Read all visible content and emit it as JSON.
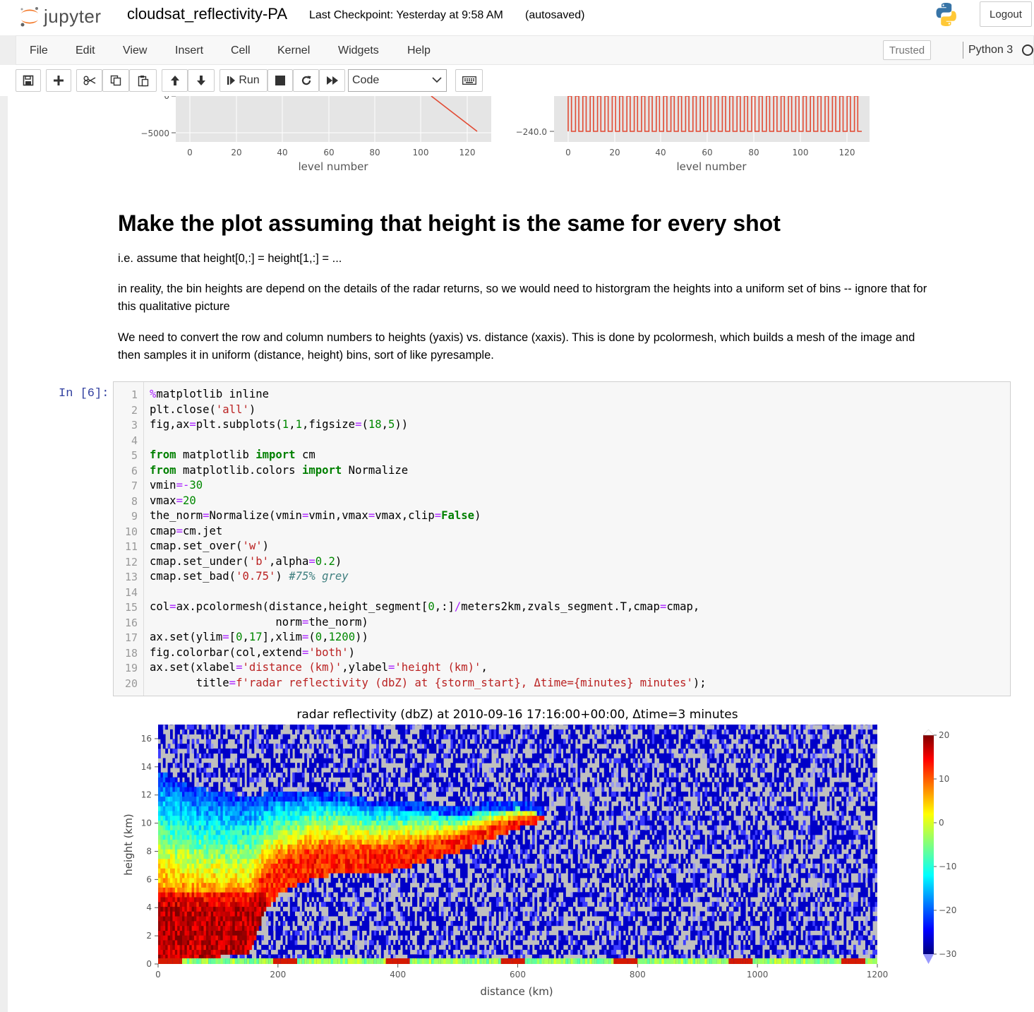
{
  "header": {
    "logo_text": "jupyter",
    "notebook_name": "cloudsat_reflectivity-PA",
    "checkpoint": "Last Checkpoint: Yesterday at 9:58 AM",
    "autosave": "(autosaved)",
    "logout": "Logout"
  },
  "menu": {
    "items": [
      "File",
      "Edit",
      "View",
      "Insert",
      "Cell",
      "Kernel",
      "Widgets",
      "Help"
    ],
    "trusted": "Trusted",
    "kernel": "Python 3"
  },
  "toolbar": {
    "run_label": "Run",
    "cell_type": "Code",
    "icons": [
      "save-icon",
      "plus-icon",
      "cut-icon",
      "copy-icon",
      "paste-icon",
      "arrow-up-icon",
      "arrow-down-icon",
      "run-icon",
      "stop-icon",
      "restart-icon",
      "fast-forward-icon",
      "keyboard-icon"
    ]
  },
  "top_plots": {
    "left": {
      "ytick_labels": [
        "0",
        "−5000"
      ],
      "xtick_labels": [
        "0",
        "20",
        "40",
        "60",
        "80",
        "100",
        "120"
      ],
      "xlabel": "level number"
    },
    "right": {
      "ytick_labels": [
        "−240.0"
      ],
      "xtick_labels": [
        "0",
        "20",
        "40",
        "60",
        "80",
        "100",
        "120"
      ],
      "xlabel": "level number"
    }
  },
  "markdown": {
    "title": "Make the plot assuming that height is the same for every shot",
    "p1": "i.e. assume that height[0,:] = height[1,:] = ...",
    "p2a": "in reality, the bin heights are depend on the details of the radar returns, so we would need to historgram the heights into a uniform set of bins -- ignore that for",
    "p2b": "this qualitative picture",
    "p3a": "We need to convert the row and column numbers to heights (yaxis) vs. distance (xaxis). This is done by pcolormesh, which builds a mesh of the image and",
    "p3b": "then samples it in uniform (distance, height) bins, sort of like pyresample."
  },
  "code_cell": {
    "prompt": "In [6]:",
    "line_numbers": [
      "1",
      "2",
      "3",
      "4",
      "5",
      "6",
      "7",
      "8",
      "9",
      "10",
      "11",
      "12",
      "13",
      "14",
      "15",
      "16",
      "17",
      "18",
      "19",
      "20"
    ]
  },
  "chart_data": {
    "type": "heatmap",
    "title": "radar reflectivity (dbZ) at 2010-09-16 17:16:00+00:00, Δtime=3 minutes",
    "xlabel": "distance (km)",
    "ylabel": "height (km)",
    "xlim": [
      0,
      1200
    ],
    "ylim": [
      0,
      17
    ],
    "xticks": [
      "0",
      "200",
      "400",
      "600",
      "800",
      "1000",
      "1200"
    ],
    "yticks": [
      "0",
      "2",
      "4",
      "6",
      "8",
      "10",
      "12",
      "14",
      "16"
    ],
    "colorbar": {
      "cmap": "jet",
      "vmin": -30,
      "vmax": 20,
      "ticks": [
        "20",
        "10",
        "0",
        "−10",
        "−20",
        "−30"
      ],
      "extend": "both"
    },
    "cloud_top_profile_km": [
      {
        "x": 0,
        "top": 13.5
      },
      {
        "x": 50,
        "top": 12.5
      },
      {
        "x": 100,
        "top": 12
      },
      {
        "x": 150,
        "top": 11.8
      },
      {
        "x": 200,
        "top": 12
      },
      {
        "x": 250,
        "top": 12.2
      },
      {
        "x": 300,
        "top": 12
      },
      {
        "x": 350,
        "top": 11.5
      },
      {
        "x": 400,
        "top": 11.5
      },
      {
        "x": 450,
        "top": 11.2
      },
      {
        "x": 500,
        "top": 11
      },
      {
        "x": 550,
        "top": 11.3
      },
      {
        "x": 600,
        "top": 11.5
      },
      {
        "x": 640,
        "top": 11
      }
    ],
    "cloud_base_profile_km": [
      {
        "x": 0,
        "base": 0
      },
      {
        "x": 150,
        "base": 0.5
      },
      {
        "x": 175,
        "base": 3.5
      },
      {
        "x": 200,
        "base": 4.8
      },
      {
        "x": 250,
        "base": 5.8
      },
      {
        "x": 300,
        "base": 6.3
      },
      {
        "x": 350,
        "base": 6.3
      },
      {
        "x": 400,
        "base": 6.5
      },
      {
        "x": 450,
        "base": 7.2
      },
      {
        "x": 500,
        "base": 7.8
      },
      {
        "x": 550,
        "base": 8.6
      },
      {
        "x": 600,
        "base": 9.5
      },
      {
        "x": 640,
        "base": 10
      }
    ]
  }
}
